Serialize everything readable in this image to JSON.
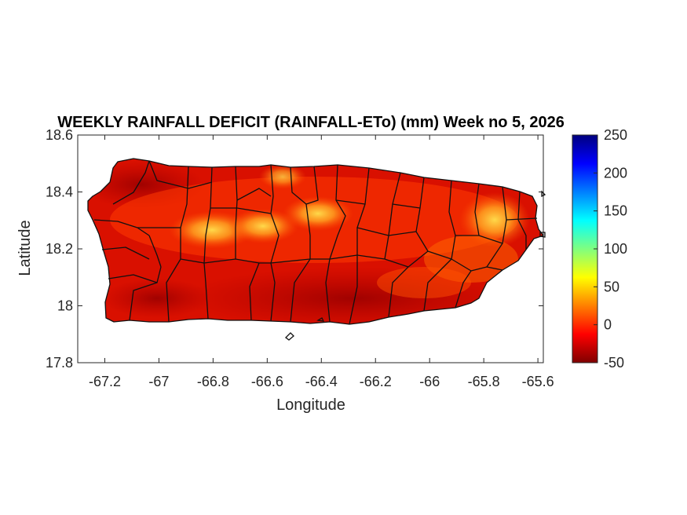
{
  "figure": {
    "title": "WEEKLY RAINFALL DEFICIT (RAINFALL-ETo) (mm) Week no 5, 2026",
    "xlabel": "Longitude",
    "ylabel": "Latitude"
  },
  "chart_data": {
    "type": "heatmap",
    "title": "WEEKLY RAINFALL DEFICIT (RAINFALL-ETo) (mm) Week no 5, 2026",
    "xlabel": "Longitude",
    "ylabel": "Latitude",
    "xlim": [
      -67.3,
      -65.58
    ],
    "ylim": [
      17.8,
      18.6
    ],
    "x_ticks": [
      -67.2,
      -67,
      -66.8,
      -66.6,
      -66.4,
      -66.2,
      -66,
      -65.8,
      -65.6
    ],
    "x_tick_labels": [
      "-67.2",
      "-67",
      "-66.8",
      "-66.6",
      "-66.4",
      "-66.2",
      "-66",
      "-65.8",
      "-65.6"
    ],
    "y_ticks": [
      17.8,
      18,
      18.2,
      18.4,
      18.6
    ],
    "y_tick_labels": [
      "17.8",
      "18",
      "18.2",
      "18.4",
      "18.6"
    ],
    "colorbar": {
      "min": -50,
      "max": 250,
      "ticks": [
        -50,
        0,
        50,
        100,
        150,
        200,
        250
      ],
      "tick_labels": [
        "-50",
        "0",
        "50",
        "100",
        "150",
        "200",
        "250"
      ],
      "colormap": "jet"
    },
    "value_range_shown": [
      -45,
      45
    ],
    "notable_regions": [
      {
        "lon": -66.82,
        "lat": 18.26,
        "value": 40
      },
      {
        "lon": -66.56,
        "lat": 18.27,
        "value": 40
      },
      {
        "lon": -66.38,
        "lat": 18.32,
        "value": 30
      },
      {
        "lon": -65.79,
        "lat": 18.31,
        "value": 35
      },
      {
        "lon": -66.4,
        "lat": 17.99,
        "value": -40
      },
      {
        "lon": -67.05,
        "lat": 18.45,
        "value": -35
      }
    ],
    "colors": {
      "deficit": "#b10000",
      "neutral": "#ff4a00",
      "mild": "#ffd040"
    }
  }
}
